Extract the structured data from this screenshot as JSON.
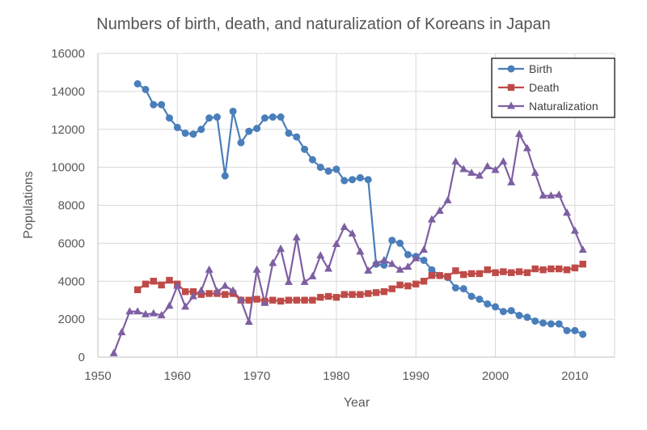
{
  "chart_data": {
    "type": "line",
    "title": "Numbers of birth, death, and naturalization of Koreans in Japan",
    "xlabel": "Year",
    "ylabel": "Populations",
    "xlim": [
      1950,
      2015
    ],
    "ylim": [
      0,
      16000
    ],
    "x_ticks": [
      1950,
      1960,
      1970,
      1980,
      1990,
      2000,
      2010
    ],
    "y_ticks": [
      0,
      2000,
      4000,
      6000,
      8000,
      10000,
      12000,
      14000,
      16000
    ],
    "grid": "both",
    "legend_position": "top-right",
    "series": [
      {
        "name": "Birth",
        "color": "#4a7ebb",
        "marker": "circle",
        "points": [
          [
            1955,
            14400
          ],
          [
            1956,
            14100
          ],
          [
            1957,
            13300
          ],
          [
            1958,
            13300
          ],
          [
            1959,
            12600
          ],
          [
            1960,
            12100
          ],
          [
            1961,
            11800
          ],
          [
            1962,
            11750
          ],
          [
            1963,
            12000
          ],
          [
            1964,
            12600
          ],
          [
            1965,
            12650
          ],
          [
            1966,
            9550
          ],
          [
            1967,
            12950
          ],
          [
            1968,
            11300
          ],
          [
            1969,
            11900
          ],
          [
            1970,
            12050
          ],
          [
            1971,
            12600
          ],
          [
            1972,
            12650
          ],
          [
            1973,
            12650
          ],
          [
            1974,
            11800
          ],
          [
            1975,
            11600
          ],
          [
            1976,
            10950
          ],
          [
            1977,
            10400
          ],
          [
            1978,
            10000
          ],
          [
            1979,
            9800
          ],
          [
            1980,
            9900
          ],
          [
            1981,
            9300
          ],
          [
            1982,
            9350
          ],
          [
            1983,
            9450
          ],
          [
            1984,
            9350
          ],
          [
            1985,
            4900
          ],
          [
            1986,
            4850
          ],
          [
            1987,
            6150
          ],
          [
            1988,
            6000
          ],
          [
            1989,
            5400
          ],
          [
            1990,
            5300
          ],
          [
            1991,
            5100
          ],
          [
            1992,
            4600
          ],
          [
            1993,
            4300
          ],
          [
            1994,
            4200
          ],
          [
            1995,
            3650
          ],
          [
            1996,
            3600
          ],
          [
            1997,
            3200
          ],
          [
            1998,
            3050
          ],
          [
            1999,
            2800
          ],
          [
            2000,
            2650
          ],
          [
            2001,
            2400
          ],
          [
            2002,
            2450
          ],
          [
            2003,
            2200
          ],
          [
            2004,
            2100
          ],
          [
            2005,
            1900
          ],
          [
            2006,
            1800
          ],
          [
            2007,
            1750
          ],
          [
            2008,
            1750
          ],
          [
            2009,
            1400
          ],
          [
            2010,
            1400
          ],
          [
            2011,
            1200
          ]
        ]
      },
      {
        "name": "Death",
        "color": "#be4b48",
        "marker": "square",
        "points": [
          [
            1955,
            3550
          ],
          [
            1956,
            3850
          ],
          [
            1957,
            4000
          ],
          [
            1958,
            3800
          ],
          [
            1959,
            4050
          ],
          [
            1960,
            3850
          ],
          [
            1961,
            3450
          ],
          [
            1962,
            3450
          ],
          [
            1963,
            3300
          ],
          [
            1964,
            3350
          ],
          [
            1965,
            3350
          ],
          [
            1966,
            3300
          ],
          [
            1967,
            3350
          ],
          [
            1968,
            3000
          ],
          [
            1969,
            3000
          ],
          [
            1970,
            3050
          ],
          [
            1971,
            2950
          ],
          [
            1972,
            3000
          ],
          [
            1973,
            2950
          ],
          [
            1974,
            3000
          ],
          [
            1975,
            3000
          ],
          [
            1976,
            3000
          ],
          [
            1977,
            3000
          ],
          [
            1978,
            3150
          ],
          [
            1979,
            3200
          ],
          [
            1980,
            3150
          ],
          [
            1981,
            3300
          ],
          [
            1982,
            3300
          ],
          [
            1983,
            3300
          ],
          [
            1984,
            3350
          ],
          [
            1985,
            3400
          ],
          [
            1986,
            3450
          ],
          [
            1987,
            3600
          ],
          [
            1988,
            3800
          ],
          [
            1989,
            3750
          ],
          [
            1990,
            3850
          ],
          [
            1991,
            4000
          ],
          [
            1992,
            4300
          ],
          [
            1993,
            4300
          ],
          [
            1994,
            4250
          ],
          [
            1995,
            4550
          ],
          [
            1996,
            4350
          ],
          [
            1997,
            4400
          ],
          [
            1998,
            4400
          ],
          [
            1999,
            4600
          ],
          [
            2000,
            4450
          ],
          [
            2001,
            4500
          ],
          [
            2002,
            4450
          ],
          [
            2003,
            4500
          ],
          [
            2004,
            4450
          ],
          [
            2005,
            4650
          ],
          [
            2006,
            4600
          ],
          [
            2007,
            4650
          ],
          [
            2008,
            4650
          ],
          [
            2009,
            4600
          ],
          [
            2010,
            4700
          ],
          [
            2011,
            4900
          ]
        ]
      },
      {
        "name": "Naturalization",
        "color": "#7e5fa2",
        "marker": "triangle",
        "points": [
          [
            1952,
            200
          ],
          [
            1953,
            1300
          ],
          [
            1954,
            2400
          ],
          [
            1955,
            2400
          ],
          [
            1956,
            2250
          ],
          [
            1957,
            2300
          ],
          [
            1958,
            2200
          ],
          [
            1959,
            2700
          ],
          [
            1960,
            3750
          ],
          [
            1961,
            2650
          ],
          [
            1962,
            3200
          ],
          [
            1963,
            3500
          ],
          [
            1964,
            4600
          ],
          [
            1965,
            3450
          ],
          [
            1966,
            3750
          ],
          [
            1967,
            3500
          ],
          [
            1968,
            3000
          ],
          [
            1969,
            1850
          ],
          [
            1970,
            4600
          ],
          [
            1971,
            2850
          ],
          [
            1972,
            4950
          ],
          [
            1973,
            5700
          ],
          [
            1974,
            3950
          ],
          [
            1975,
            6300
          ],
          [
            1976,
            3950
          ],
          [
            1977,
            4250
          ],
          [
            1978,
            5350
          ],
          [
            1979,
            4650
          ],
          [
            1980,
            5950
          ],
          [
            1981,
            6850
          ],
          [
            1982,
            6500
          ],
          [
            1983,
            5550
          ],
          [
            1984,
            4550
          ],
          [
            1985,
            4950
          ],
          [
            1986,
            5100
          ],
          [
            1987,
            4900
          ],
          [
            1988,
            4600
          ],
          [
            1989,
            4750
          ],
          [
            1990,
            5200
          ],
          [
            1991,
            5650
          ],
          [
            1992,
            7250
          ],
          [
            1993,
            7700
          ],
          [
            1994,
            8250
          ],
          [
            1995,
            10300
          ],
          [
            1996,
            9900
          ],
          [
            1997,
            9700
          ],
          [
            1998,
            9550
          ],
          [
            1999,
            10050
          ],
          [
            2000,
            9850
          ],
          [
            2001,
            10300
          ],
          [
            2002,
            9200
          ],
          [
            2003,
            11750
          ],
          [
            2004,
            11000
          ],
          [
            2005,
            9700
          ],
          [
            2006,
            8500
          ],
          [
            2007,
            8500
          ],
          [
            2008,
            8550
          ],
          [
            2009,
            7600
          ],
          [
            2010,
            6650
          ],
          [
            2011,
            5650
          ]
        ]
      }
    ]
  }
}
